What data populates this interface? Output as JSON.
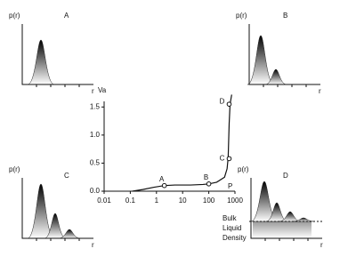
{
  "chart_data": {
    "type": "line",
    "ylabel": "Va",
    "xlabel": "P",
    "xscale": "log",
    "xlim": [
      0.01,
      1000
    ],
    "xticks": [
      0.01,
      0.1,
      1,
      10,
      100,
      1000
    ],
    "ylim": [
      0,
      1.6
    ],
    "yticks": [
      {
        "value": 0,
        "label": "0.0"
      },
      0.5,
      {
        "value": 1,
        "label": "1.0"
      },
      1.5
    ],
    "color": "#111111",
    "curve": {
      "x": [
        0.12,
        0.3,
        0.8,
        2,
        5,
        20,
        60,
        100,
        200,
        400,
        500,
        550,
        600,
        650,
        750
      ],
      "values": [
        0,
        0.03,
        0.07,
        0.1,
        0.11,
        0.11,
        0.12,
        0.13,
        0.16,
        0.25,
        0.4,
        0.6,
        1.2,
        1.55,
        1.72
      ]
    },
    "points": {
      "labels": [
        "A",
        "B",
        "C",
        "D"
      ],
      "x": [
        2,
        100,
        600,
        600
      ],
      "values": [
        0.1,
        0.13,
        0.58,
        1.55
      ]
    }
  },
  "insets": [
    {
      "label": "A",
      "ylabel": "p(r)",
      "xlabel": "r"
    },
    {
      "label": "B",
      "ylabel": "p(r)",
      "xlabel": "r"
    },
    {
      "label": "C",
      "ylabel": "p(r)",
      "xlabel": "r"
    },
    {
      "label": "D",
      "ylabel": "p(r)",
      "xlabel": "r"
    }
  ],
  "bulk_label": [
    "Bulk",
    "Liquid",
    "Density"
  ]
}
